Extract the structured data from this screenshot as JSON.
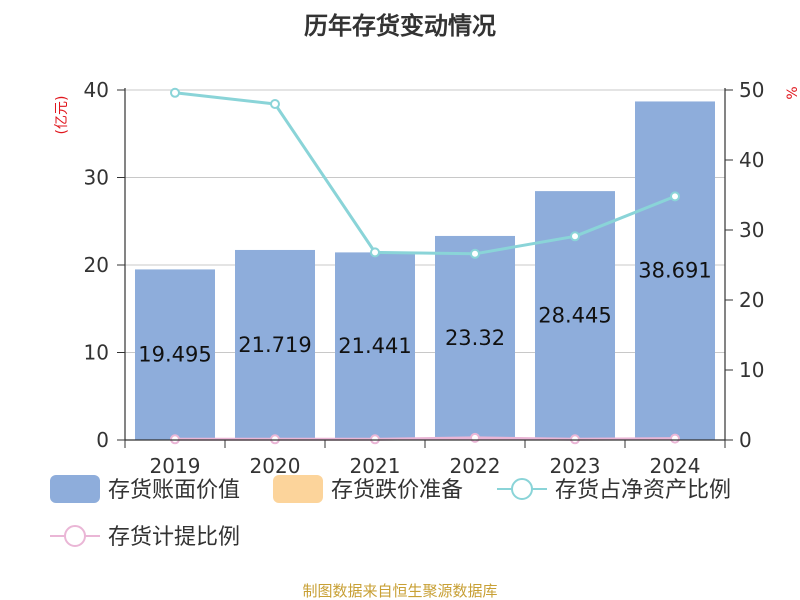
{
  "chart_data": {
    "type": "bar",
    "title": "历年存货变动情况",
    "categories": [
      "2019",
      "2020",
      "2021",
      "2022",
      "2023",
      "2024"
    ],
    "y_left": {
      "unit_label": "(亿元)",
      "ylim": [
        0,
        40
      ],
      "ticks": [
        0,
        10,
        20,
        30,
        40
      ]
    },
    "y_right": {
      "unit_label": "%",
      "ylim": [
        0,
        50
      ],
      "ticks": [
        0,
        10,
        20,
        30,
        40,
        50
      ]
    },
    "series": [
      {
        "name": "存货账面价值",
        "type": "bar",
        "axis": "left",
        "color": "#8eaddb",
        "values": [
          19.495,
          21.719,
          21.441,
          23.32,
          28.445,
          38.691
        ],
        "labels": [
          "19.495",
          "21.719",
          "21.441",
          "23.32",
          "28.445",
          "38.691"
        ]
      },
      {
        "name": "存货跌价准备",
        "type": "bar",
        "axis": "left",
        "color": "#fcd49b",
        "values": [
          0,
          0,
          0,
          0,
          0,
          0
        ]
      },
      {
        "name": "存货占净资产比例",
        "type": "line",
        "axis": "right",
        "color": "#8ad4d8",
        "values": [
          49.6,
          48.0,
          26.8,
          26.6,
          29.1,
          34.8
        ]
      },
      {
        "name": "存货计提比例",
        "type": "line",
        "axis": "right",
        "color": "#eab6d6",
        "values": [
          0.1,
          0.1,
          0.1,
          0.3,
          0.1,
          0.2
        ]
      }
    ],
    "grid": true,
    "legend_position": "bottom"
  },
  "footer": {
    "source": "制图数据来自恒生聚源数据库"
  }
}
